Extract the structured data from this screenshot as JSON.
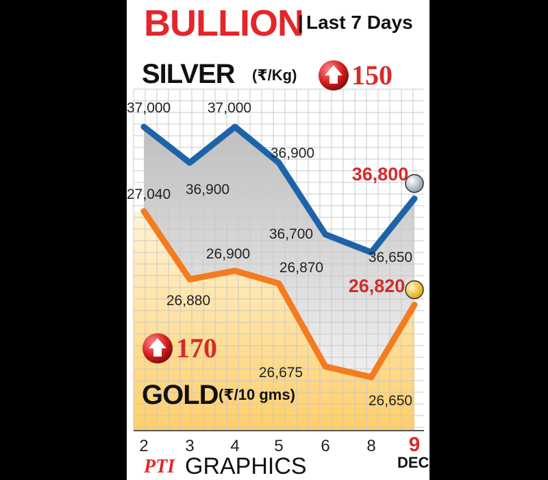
{
  "header": {
    "title": "BULLION",
    "subtitle": "Last 7 Days"
  },
  "silver": {
    "name": "SILVER",
    "unit": "(₹/Kg)",
    "change": "150",
    "change_dir": "up"
  },
  "gold": {
    "name": "GOLD",
    "unit": "(₹/10 gms)",
    "change": "170",
    "change_dir": "up"
  },
  "credit": {
    "logo": "PTI",
    "text": "GRAPHICS"
  },
  "colors": {
    "title_red": "#e3262b",
    "value_red": "#d52b2b",
    "silver_line": "#1e63a8",
    "gold_line": "#f47b20",
    "band_grey": "#c9c9c9",
    "band_gold": "#ffd98a",
    "grid": "#c8c8c8"
  },
  "chart_data": {
    "type": "line",
    "title": "BULLION | Last 7 Days",
    "x_unit_label": "DEC",
    "categories": [
      "2",
      "3",
      "4",
      "5",
      "6",
      "8",
      "9"
    ],
    "highlight_last_category": true,
    "grid": true,
    "series": [
      {
        "name": "SILVER (₹/Kg)",
        "values": [
          37000,
          36900,
          37000,
          36900,
          36700,
          36650,
          36800
        ],
        "labels": [
          "37,000",
          "36,900",
          "37,000",
          "36,900",
          "36,700",
          "36,650",
          "36,800"
        ],
        "change": "150"
      },
      {
        "name": "GOLD (₹/10 gms)",
        "values": [
          27040,
          26880,
          26900,
          26870,
          26675,
          26650,
          26820
        ],
        "labels": [
          "27,040",
          "26,880",
          "26,900",
          "26,870",
          "26,675",
          "26,650",
          "26,820"
        ],
        "change": "170"
      }
    ]
  }
}
